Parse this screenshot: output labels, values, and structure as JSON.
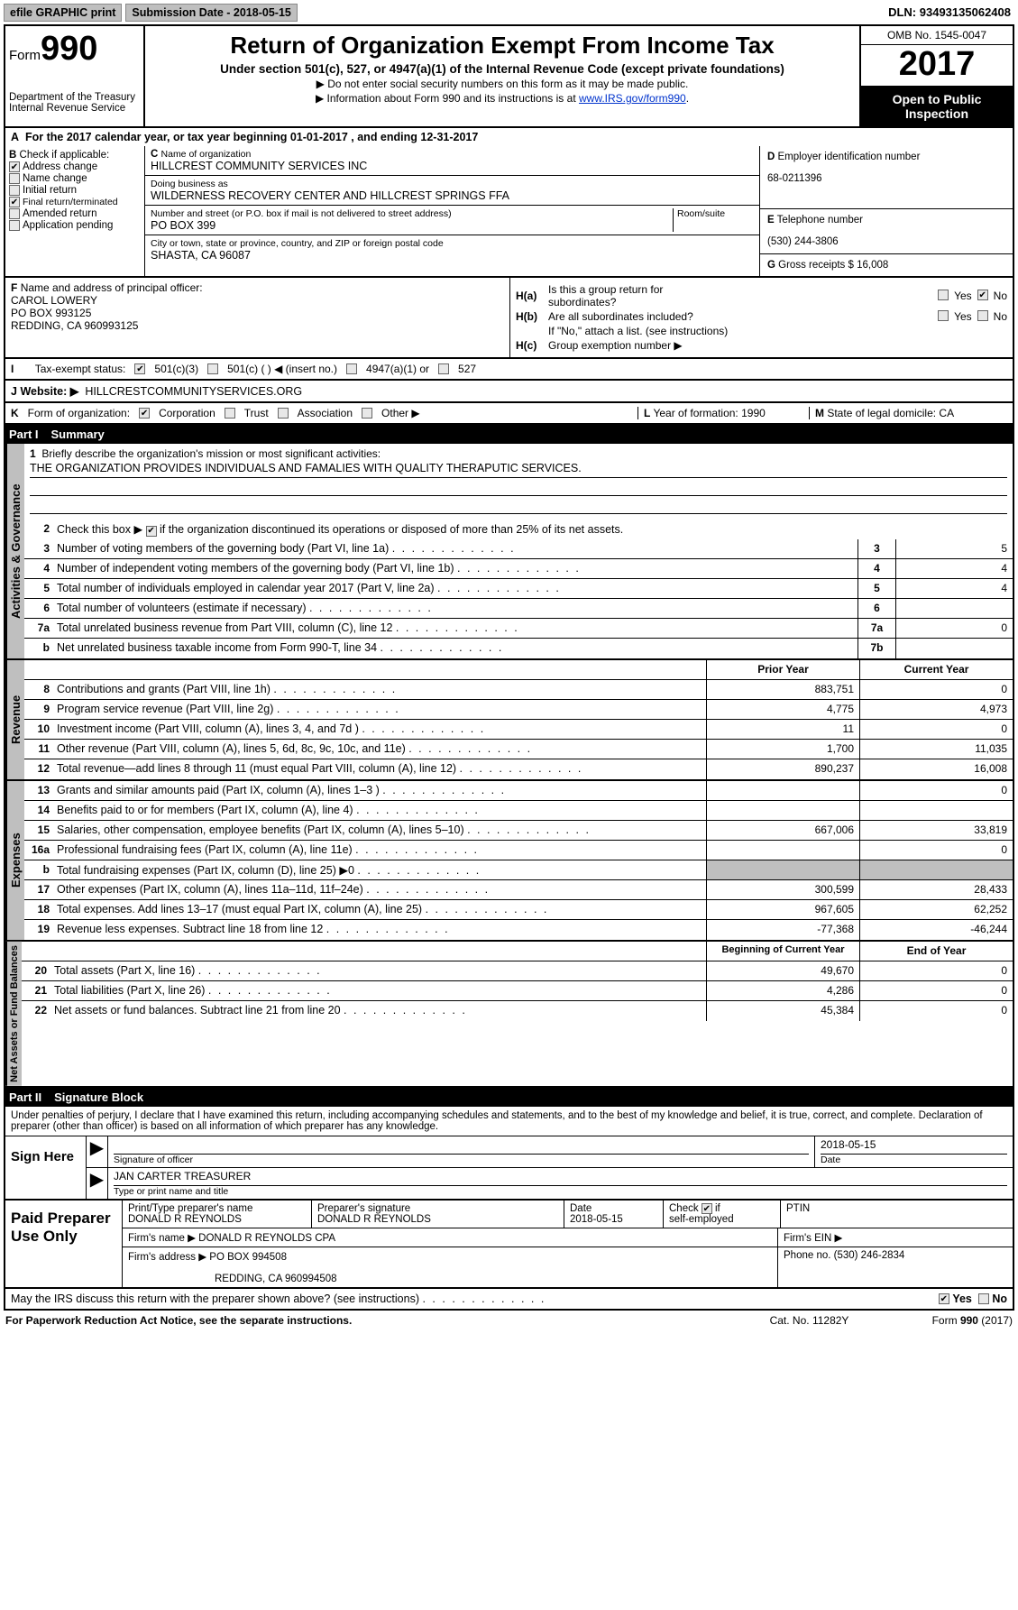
{
  "topbar": {
    "efile": "efile GRAPHIC print",
    "subdate_label": "Submission Date - ",
    "subdate": "2018-05-15",
    "dln_label": "DLN: ",
    "dln": "93493135062408"
  },
  "header": {
    "form_label": "Form",
    "form_no": "990",
    "dept1": "Department of the Treasury",
    "dept2": "Internal Revenue Service",
    "title": "Return of Organization Exempt From Income Tax",
    "subtitle": "Under section 501(c), 527, or 4947(a)(1) of the Internal Revenue Code (except private foundations)",
    "note1": "▶ Do not enter social security numbers on this form as it may be made public.",
    "note2_a": "▶ Information about Form 990 and its instructions is at ",
    "note2_link": "www.IRS.gov/form990",
    "omb": "OMB No. 1545-0047",
    "year": "2017",
    "otp1": "Open to Public",
    "otp2": "Inspection"
  },
  "A": {
    "text_a": "For the 2017 calendar year, or tax year beginning ",
    "begin": "01-01-2017",
    "text_b": " , and ending ",
    "end": "12-31-2017"
  },
  "B": {
    "label": "Check if applicable:",
    "items": [
      {
        "label": "Address change",
        "checked": true
      },
      {
        "label": "Name change",
        "checked": false
      },
      {
        "label": "Initial return",
        "checked": false
      },
      {
        "label": "Final return/terminated",
        "checked": true
      },
      {
        "label": "Amended return",
        "checked": false
      },
      {
        "label": "Application pending",
        "checked": false
      }
    ]
  },
  "C": {
    "name_lbl": "Name of organization",
    "name": "HILLCREST COMMUNITY SERVICES INC",
    "dba_lbl": "Doing business as",
    "dba": "WILDERNESS RECOVERY CENTER AND HILLCREST SPRINGS FFA",
    "addr_lbl": "Number and street (or P.O. box if mail is not delivered to street address)",
    "room_lbl": "Room/suite",
    "addr": "PO BOX 399",
    "city_lbl": "City or town, state or province, country, and ZIP or foreign postal code",
    "city": "SHASTA, CA  96087"
  },
  "D": {
    "lbl": "Employer identification number",
    "val": "68-0211396"
  },
  "E": {
    "lbl": "Telephone number",
    "val": "(530) 244-3806"
  },
  "G": {
    "lbl": "Gross receipts $ ",
    "val": "16,008"
  },
  "F": {
    "lbl": "Name and address of principal officer:",
    "l1": "CAROL LOWERY",
    "l2": "PO BOX 993125",
    "l3": "REDDING, CA  960993125"
  },
  "H": {
    "a_lbl": "Is this a group return for",
    "a_lbl2": "subordinates?",
    "a_yes": false,
    "a_no": true,
    "b_lbl": "Are all subordinates included?",
    "b_yes": false,
    "b_no": false,
    "b_note": "If \"No,\" attach a list. (see instructions)",
    "c_lbl": "Group exemption number ▶"
  },
  "I": {
    "lbl": "Tax-exempt status:",
    "o501c3": "501(c)(3)",
    "o501c": "501(c) (   ) ◀ (insert no.)",
    "o4947": "4947(a)(1) or",
    "o527": "527"
  },
  "J": {
    "lbl": "Website: ▶",
    "val": "HILLCRESTCOMMUNITYSERVICES.ORG"
  },
  "K": {
    "lbl": "Form of organization:",
    "corp": "Corporation",
    "trust": "Trust",
    "assoc": "Association",
    "other": "Other ▶",
    "L_lbl": "Year of formation: ",
    "L_val": "1990",
    "M_lbl": "State of legal domicile: ",
    "M_val": "CA"
  },
  "partI": {
    "title": "Part I",
    "name": "Summary",
    "l1_lbl": "Briefly describe the organization's mission or most significant activities:",
    "l1_val": "THE ORGANIZATION PROVIDES INDIVIDUALS AND FAMALIES WITH QUALITY THERAPUTIC SERVICES.",
    "l2": "Check this box ▶   if the organization discontinued its operations or disposed of more than 25% of its net assets.",
    "gov_lines": [
      {
        "n": "3",
        "t": "Number of voting members of the governing body (Part VI, line 1a)",
        "box": "3",
        "v": "5"
      },
      {
        "n": "4",
        "t": "Number of independent voting members of the governing body (Part VI, line 1b)",
        "box": "4",
        "v": "4"
      },
      {
        "n": "5",
        "t": "Total number of individuals employed in calendar year 2017 (Part V, line 2a)",
        "box": "5",
        "v": "4"
      },
      {
        "n": "6",
        "t": "Total number of volunteers (estimate if necessary)",
        "box": "6",
        "v": ""
      },
      {
        "n": "7a",
        "t": "Total unrelated business revenue from Part VIII, column (C), line 12",
        "box": "7a",
        "v": "0"
      },
      {
        "n": "b",
        "t": "Net unrelated business taxable income from Form 990-T, line 34",
        "box": "7b",
        "v": ""
      }
    ],
    "rev_hdr": {
      "c1": "Prior Year",
      "c2": "Current Year"
    },
    "rev_lines": [
      {
        "n": "8",
        "t": "Contributions and grants (Part VIII, line 1h)",
        "p": "883,751",
        "c": "0"
      },
      {
        "n": "9",
        "t": "Program service revenue (Part VIII, line 2g)",
        "p": "4,775",
        "c": "4,973"
      },
      {
        "n": "10",
        "t": "Investment income (Part VIII, column (A), lines 3, 4, and 7d )",
        "p": "11",
        "c": "0"
      },
      {
        "n": "11",
        "t": "Other revenue (Part VIII, column (A), lines 5, 6d, 8c, 9c, 10c, and 11e)",
        "p": "1,700",
        "c": "11,035"
      },
      {
        "n": "12",
        "t": "Total revenue—add lines 8 through 11 (must equal Part VIII, column (A), line 12)",
        "p": "890,237",
        "c": "16,008"
      }
    ],
    "exp_lines": [
      {
        "n": "13",
        "t": "Grants and similar amounts paid (Part IX, column (A), lines 1–3 )",
        "p": "",
        "c": "0"
      },
      {
        "n": "14",
        "t": "Benefits paid to or for members (Part IX, column (A), line 4)",
        "p": "",
        "c": ""
      },
      {
        "n": "15",
        "t": "Salaries, other compensation, employee benefits (Part IX, column (A), lines 5–10)",
        "p": "667,006",
        "c": "33,819"
      },
      {
        "n": "16a",
        "t": "Professional fundraising fees (Part IX, column (A), line 11e)",
        "p": "",
        "c": "0"
      },
      {
        "n": "b",
        "t": "Total fundraising expenses (Part IX, column (D), line 25) ▶0",
        "p": "SHADE",
        "c": "SHADE"
      },
      {
        "n": "17",
        "t": "Other expenses (Part IX, column (A), lines 11a–11d, 11f–24e)",
        "p": "300,599",
        "c": "28,433"
      },
      {
        "n": "18",
        "t": "Total expenses. Add lines 13–17 (must equal Part IX, column (A), line 25)",
        "p": "967,605",
        "c": "62,252"
      },
      {
        "n": "19",
        "t": "Revenue less expenses. Subtract line 18 from line 12",
        "p": "-77,368",
        "c": "-46,244"
      }
    ],
    "na_hdr": {
      "c1": "Beginning of Current Year",
      "c2": "End of Year"
    },
    "na_lines": [
      {
        "n": "20",
        "t": "Total assets (Part X, line 16)",
        "p": "49,670",
        "c": "0"
      },
      {
        "n": "21",
        "t": "Total liabilities (Part X, line 26)",
        "p": "4,286",
        "c": "0"
      },
      {
        "n": "22",
        "t": "Net assets or fund balances. Subtract line 21 from line 20",
        "p": "45,384",
        "c": "0"
      }
    ]
  },
  "vtabs": {
    "gov": "Activities & Governance",
    "rev": "Revenue",
    "exp": "Expenses",
    "na": "Net Assets or Fund Balances"
  },
  "partII": {
    "title": "Part II",
    "name": "Signature Block",
    "intro": "Under penalties of perjury, I declare that I have examined this return, including accompanying schedules and statements, and to the best of my knowledge and belief, it is true, correct, and complete. Declaration of preparer (other than officer) is based on all information of which preparer has any knowledge.",
    "sign_here": "Sign Here",
    "sig_date": "2018-05-15",
    "sig_of_officer": "Signature of officer",
    "date_lbl": "Date",
    "name_title": "JAN CARTER TREASURER",
    "type_name": "Type or print name and title",
    "paid": "Paid Preparer Use Only",
    "prep_name_lbl": "Print/Type preparer's name",
    "prep_name": "DONALD R REYNOLDS",
    "prep_sig_lbl": "Preparer's signature",
    "prep_sig": "DONALD R REYNOLDS",
    "prep_date_lbl": "Date",
    "prep_date": "2018-05-15",
    "self_emp": "Check       if self-employed",
    "ptin": "PTIN",
    "firm_name_lbl": "Firm's name      ▶",
    "firm_name": "DONALD R REYNOLDS CPA",
    "firm_ein": "Firm's EIN ▶",
    "firm_addr_lbl": "Firm's address ▶",
    "firm_addr1": "PO BOX 994508",
    "firm_addr2": "REDDING, CA  960994508",
    "phone_lbl": "Phone no. ",
    "phone": "(530) 246-2834"
  },
  "may": {
    "text": "May the IRS discuss this return with the preparer shown above? (see instructions)",
    "yes": true,
    "no": false
  },
  "footer": {
    "left": "For Paperwork Reduction Act Notice, see the separate instructions.",
    "mid": "Cat. No. 11282Y",
    "right": "Form 990 (2017)"
  },
  "labels": {
    "yes": "Yes",
    "no": "No",
    "A": "A",
    "B": "B",
    "C": "C",
    "D": "D",
    "E": "E",
    "F": "F",
    "G": "G",
    "Ha": "H(a)",
    "Hb": "H(b)",
    "Hc": "H(c)",
    "I": "I",
    "J": "J",
    "K": "K",
    "L": "L",
    "M": "M"
  }
}
